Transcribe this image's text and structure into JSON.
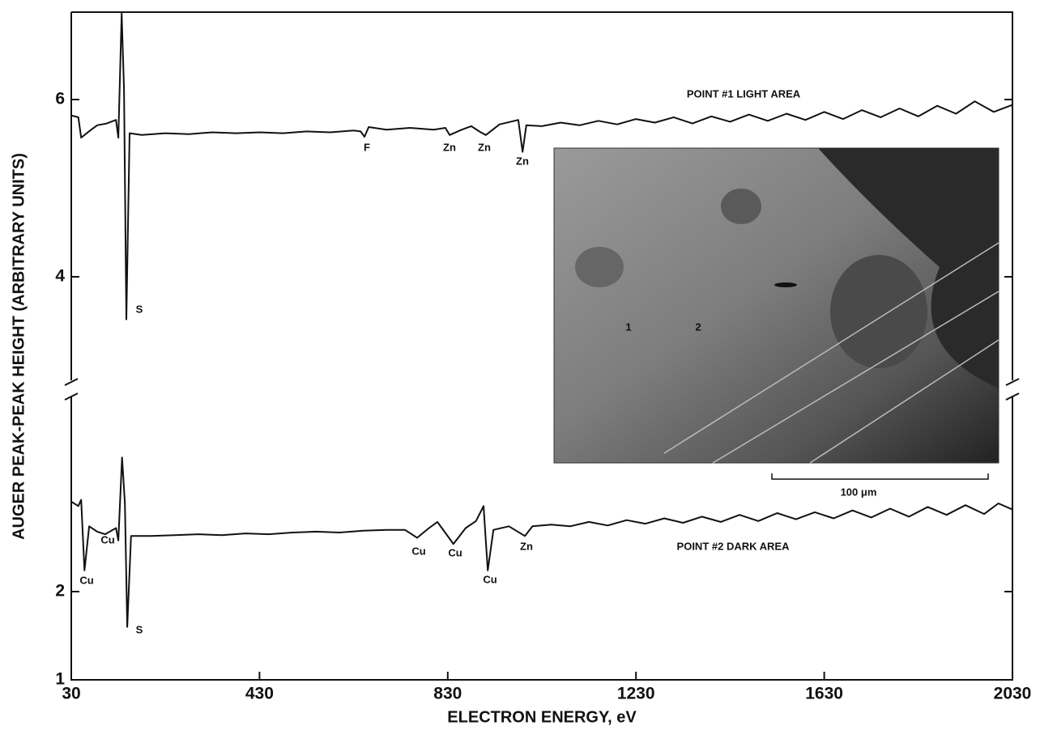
{
  "chart_data": {
    "type": "line",
    "ylabel": "AUGER PEAK-PEAK HEIGHT (ARBITRARY UNITS)",
    "xlabel": "ELECTRON ENERGY, eV",
    "xlim": [
      30,
      2030
    ],
    "xticks": [
      30,
      430,
      830,
      1230,
      1630,
      2030
    ],
    "color": "#111111",
    "panels": [
      {
        "ylim": [
          2.74,
          7
        ],
        "yticks": [
          4,
          6
        ],
        "series": [
          {
            "name": "POINT #1 LIGHT AREA",
            "color": "#111111",
            "x": [
              30,
              45,
              51,
              70,
              85,
              105,
              125,
              130,
              137,
              142,
              147,
              154,
              180,
              230,
              280,
              330,
              380,
              430,
              480,
              530,
              580,
              630,
              645,
              653,
              662,
              700,
              750,
              800,
              825,
              834,
              860,
              880,
              900,
              911,
              940,
              980,
              989,
              997,
              1030,
              1070,
              1110,
              1150,
              1190,
              1230,
              1270,
              1310,
              1350,
              1390,
              1430,
              1470,
              1510,
              1550,
              1590,
              1630,
              1670,
              1710,
              1750,
              1790,
              1830,
              1870,
              1910,
              1950,
              1990,
              2030
            ],
            "values": [
              5.82,
              5.8,
              5.57,
              5.65,
              5.71,
              5.73,
              5.77,
              5.57,
              6.97,
              6.12,
              3.52,
              5.62,
              5.6,
              5.62,
              5.61,
              5.63,
              5.62,
              5.63,
              5.62,
              5.64,
              5.63,
              5.65,
              5.64,
              5.58,
              5.69,
              5.66,
              5.68,
              5.66,
              5.68,
              5.6,
              5.66,
              5.7,
              5.63,
              5.6,
              5.72,
              5.77,
              5.41,
              5.71,
              5.7,
              5.74,
              5.71,
              5.76,
              5.72,
              5.78,
              5.74,
              5.8,
              5.73,
              5.81,
              5.75,
              5.83,
              5.76,
              5.84,
              5.77,
              5.86,
              5.78,
              5.88,
              5.8,
              5.9,
              5.81,
              5.93,
              5.84,
              5.98,
              5.86,
              5.94
            ]
          }
        ],
        "annotations": [
          "S",
          "F",
          "Zn",
          "Zn",
          "Zn"
        ]
      },
      {
        "ylim": [
          1,
          4.3
        ],
        "yticks": [
          1,
          2
        ],
        "series": [
          {
            "name": "POINT #2 DARK AREA",
            "color": "#111111",
            "x": [
              30,
              45,
              51,
              58,
              68,
              85,
              102,
              125,
              130,
              138,
              144,
              149,
              157,
              200,
              250,
              300,
              350,
              400,
              450,
              500,
              550,
              600,
              650,
              700,
              739,
              765,
              790,
              808,
              842,
              868,
              890,
              906,
              915,
              927,
              960,
              994,
              1010,
              1050,
              1090,
              1130,
              1170,
              1210,
              1250,
              1290,
              1330,
              1370,
              1410,
              1450,
              1490,
              1530,
              1570,
              1610,
              1650,
              1690,
              1730,
              1770,
              1810,
              1850,
              1890,
              1930,
              1970,
              2000,
              2030
            ],
            "values": [
              3.02,
              2.97,
              3.04,
              2.24,
              2.74,
              2.68,
              2.65,
              2.72,
              2.58,
              3.52,
              3.0,
              1.6,
              2.63,
              2.63,
              2.64,
              2.65,
              2.64,
              2.66,
              2.65,
              2.67,
              2.68,
              2.67,
              2.69,
              2.7,
              2.7,
              2.61,
              2.72,
              2.79,
              2.54,
              2.72,
              2.8,
              2.97,
              2.24,
              2.7,
              2.74,
              2.63,
              2.74,
              2.76,
              2.74,
              2.79,
              2.75,
              2.81,
              2.77,
              2.83,
              2.78,
              2.85,
              2.79,
              2.87,
              2.8,
              2.89,
              2.82,
              2.9,
              2.83,
              2.92,
              2.84,
              2.94,
              2.85,
              2.96,
              2.87,
              2.98,
              2.88,
              3.0,
              2.93
            ]
          }
        ],
        "annotations": [
          "Cu",
          "Cu",
          "S",
          "Cu",
          "Cu",
          "Cu",
          "Zn"
        ]
      }
    ],
    "inset": {
      "labels": [
        "1",
        "2"
      ],
      "scale_bar": "100 μm"
    }
  }
}
